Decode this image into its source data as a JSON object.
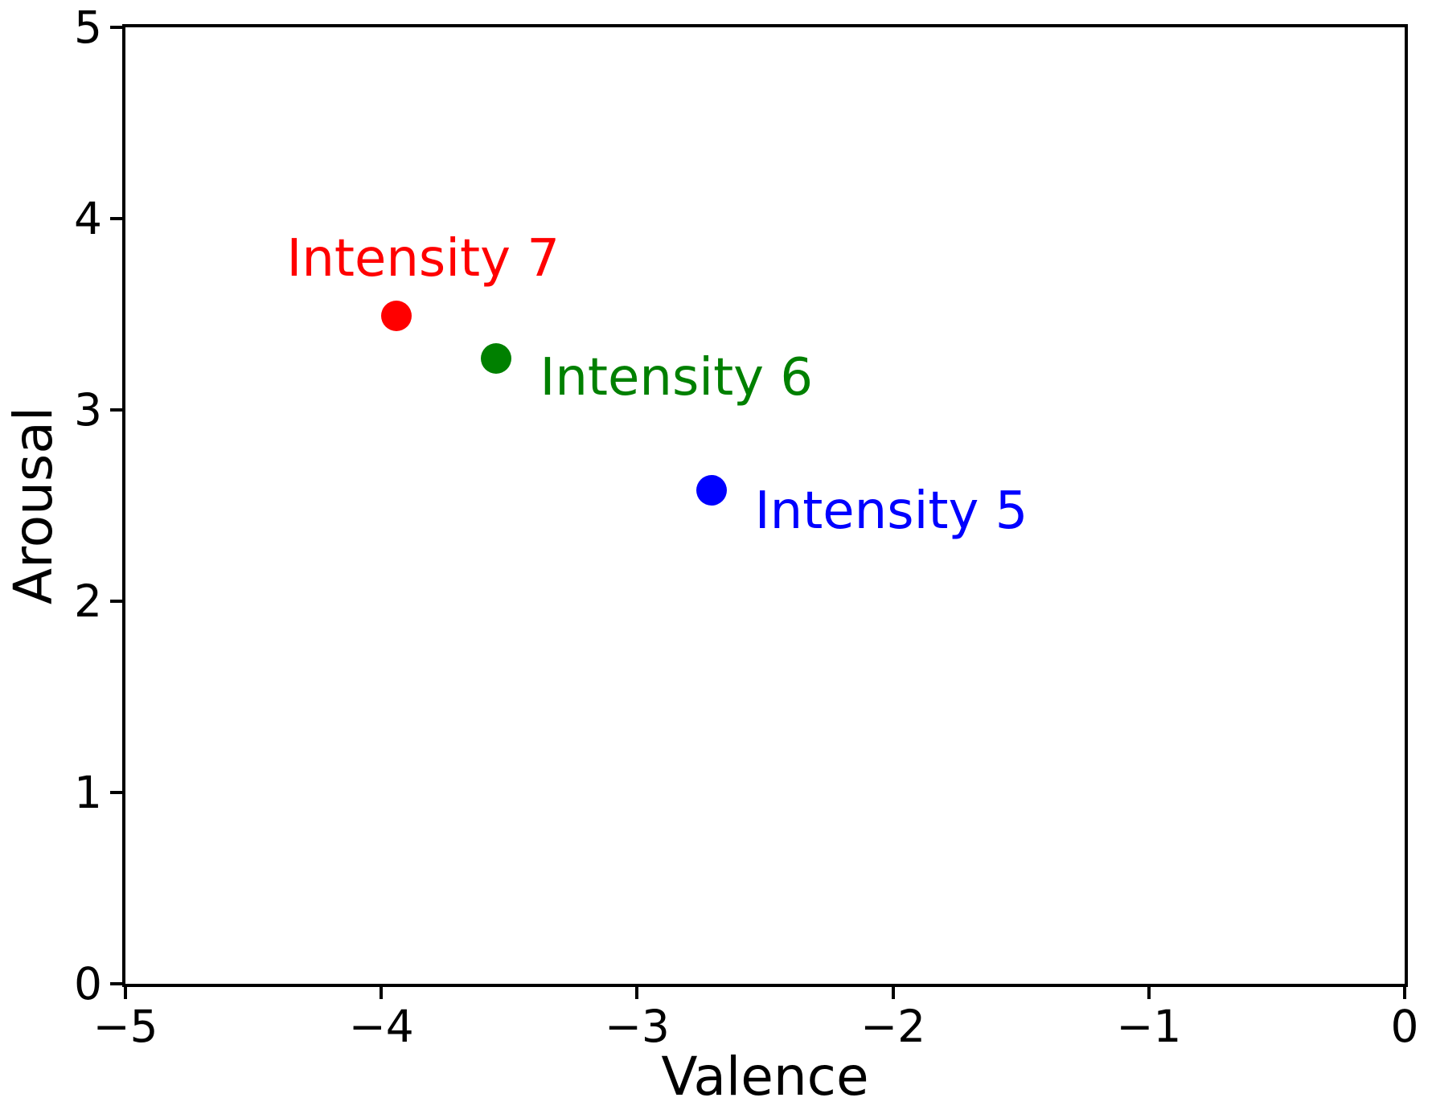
{
  "chart_data": {
    "type": "scatter",
    "title": "",
    "xlabel": "Valence",
    "ylabel": "Arousal",
    "xlim": [
      -5,
      0
    ],
    "ylim": [
      0,
      5
    ],
    "grid": false,
    "legend_position": "none",
    "background_color": "#ffffff",
    "axis_color": "#000000",
    "x_ticks": [
      {
        "value": -5,
        "label": "−5"
      },
      {
        "value": -4,
        "label": "−4"
      },
      {
        "value": -3,
        "label": "−3"
      },
      {
        "value": -2,
        "label": "−2"
      },
      {
        "value": -1,
        "label": "−1"
      },
      {
        "value": 0,
        "label": "0"
      }
    ],
    "y_ticks": [
      {
        "value": 0,
        "label": "0"
      },
      {
        "value": 1,
        "label": "1"
      },
      {
        "value": 2,
        "label": "2"
      },
      {
        "value": 3,
        "label": "3"
      },
      {
        "value": 4,
        "label": "4"
      },
      {
        "value": 5,
        "label": "5"
      }
    ],
    "points": [
      {
        "label": "Intensity 7",
        "x": -3.94,
        "y": 3.49,
        "color": "#ff0000",
        "label_anchor": {
          "x": -4.37,
          "y_baseline": 3.71
        }
      },
      {
        "label": "Intensity 6",
        "x": -3.55,
        "y": 3.27,
        "color": "#008000",
        "label_anchor": {
          "x": -3.38,
          "y_baseline": 3.09
        }
      },
      {
        "label": "Intensity 5",
        "x": -2.71,
        "y": 2.58,
        "color": "#0000ff",
        "label_anchor": {
          "x": -2.54,
          "y_baseline": 2.39
        }
      }
    ]
  }
}
